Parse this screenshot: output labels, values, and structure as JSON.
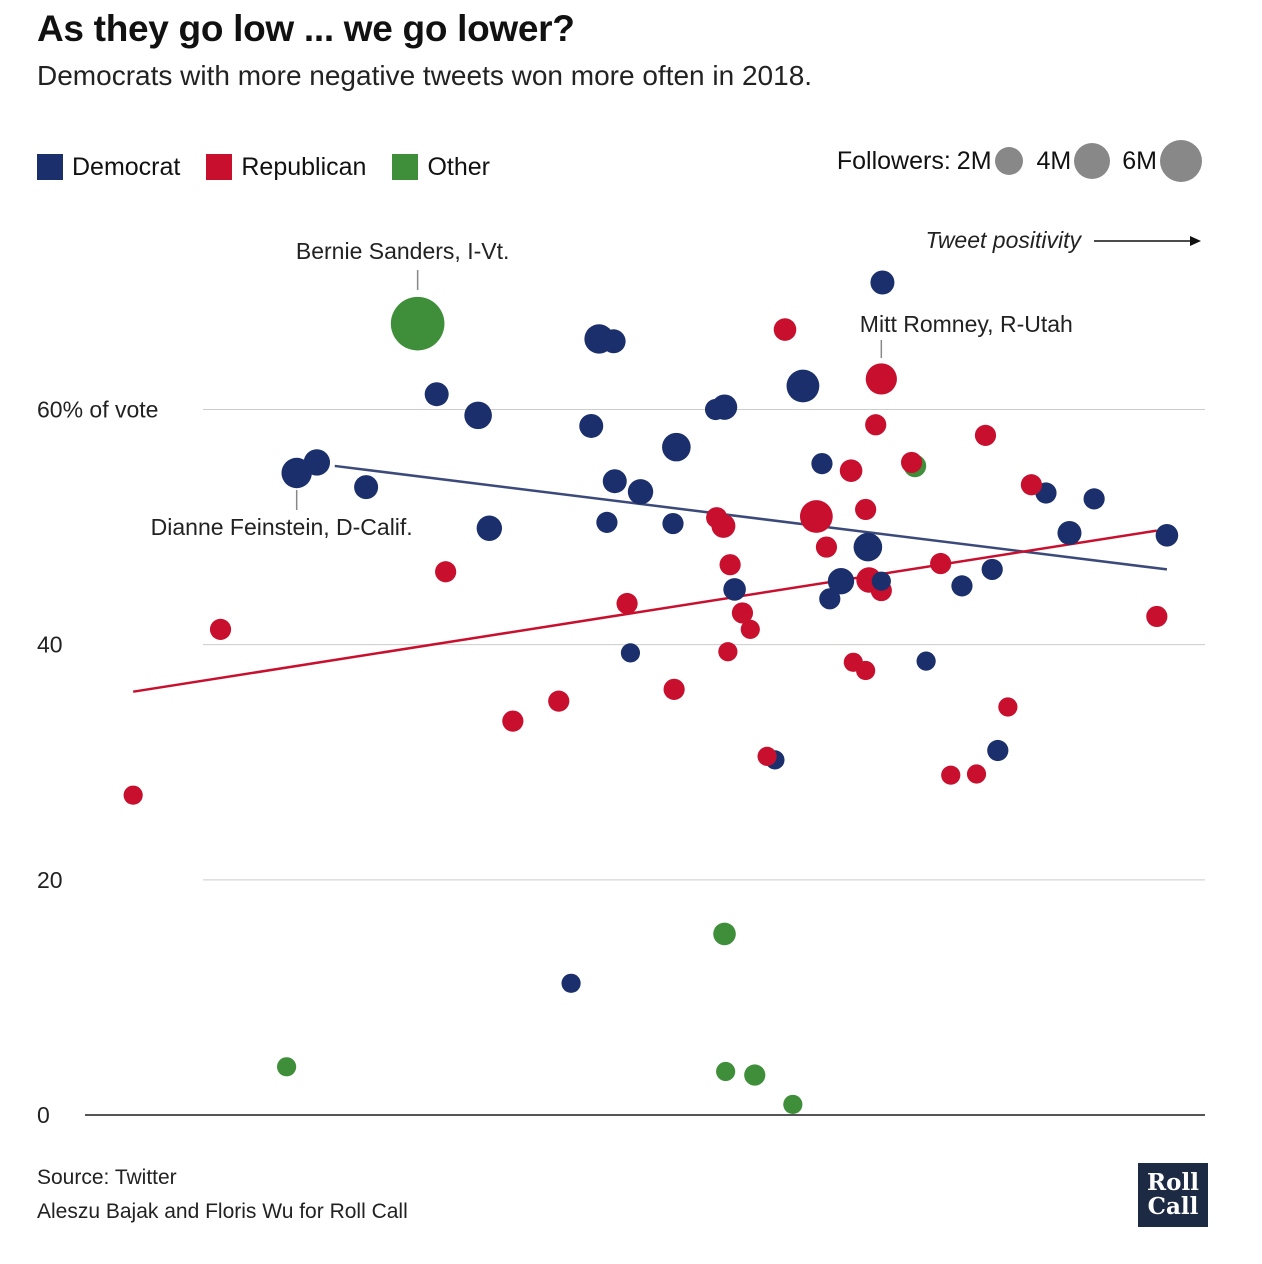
{
  "title": "As they go low ... we go lower?",
  "subtitle": "Democrats with more negative tweets won more often in 2018.",
  "legend": [
    {
      "label": "Democrat",
      "color": "#1a2f6b"
    },
    {
      "label": "Republican",
      "color": "#c8102e"
    },
    {
      "label": "Other",
      "color": "#3f8f3a"
    }
  ],
  "size_legend": {
    "prefix": "Followers:",
    "items": [
      {
        "label": "2M",
        "value": 2
      },
      {
        "label": "4M",
        "value": 4
      },
      {
        "label": "6M",
        "value": 6
      }
    ]
  },
  "footer": {
    "source": "Source: Twitter",
    "credit": "Aleszu Bajak and Floris Wu for Roll Call"
  },
  "logo": {
    "line1": "Roll",
    "line2": "Call"
  },
  "chart_data": {
    "type": "scatter",
    "x_axis_label": "Tweet positivity",
    "ylim": [
      0,
      70
    ],
    "y_ticks": [
      {
        "value": 0,
        "label": "0"
      },
      {
        "value": 20,
        "label": "20"
      },
      {
        "value": 40,
        "label": "40"
      },
      {
        "value": 60,
        "label": "60% of vote"
      }
    ],
    "grid": true,
    "legend_placement": "top",
    "colors": {
      "Democrat": "#1a2f6b",
      "Republican": "#c8102e",
      "Other": "#3f8f3a",
      "size_key": "#888888",
      "grid": "#cccccc"
    },
    "annotations": [
      {
        "text": "Bernie Sanders, I-Vt.",
        "x": 0.297,
        "y": 67.3
      },
      {
        "text": "Mitt Romney, R-Utah",
        "x": 0.711,
        "y": 62.6
      },
      {
        "text": "Dianne Feinstein, D-Calif.",
        "x": 0.189,
        "y": 54.6
      }
    ],
    "trend_lines": [
      {
        "name": "Democrat",
        "color": "#3b4a7a",
        "points": [
          [
            0.223,
            55.2
          ],
          [
            0.966,
            46.4
          ]
        ]
      },
      {
        "name": "Republican",
        "color": "#c8102e",
        "points": [
          [
            0.043,
            36.0
          ],
          [
            0.957,
            49.7
          ]
        ]
      }
    ],
    "points": [
      {
        "party": "Democrat",
        "x": 0.189,
        "y": 54.6,
        "followers": 1.1
      },
      {
        "party": "Democrat",
        "x": 0.207,
        "y": 55.5,
        "followers": 0.7
      },
      {
        "party": "Democrat",
        "x": 0.251,
        "y": 53.4,
        "followers": 0.5
      },
      {
        "party": "Democrat",
        "x": 0.314,
        "y": 61.3,
        "followers": 0.5
      },
      {
        "party": "Democrat",
        "x": 0.351,
        "y": 59.5,
        "followers": 0.8
      },
      {
        "party": "Democrat",
        "x": 0.361,
        "y": 49.9,
        "followers": 0.6
      },
      {
        "party": "Democrat",
        "x": 0.452,
        "y": 58.6,
        "followers": 0.5
      },
      {
        "party": "Democrat",
        "x": 0.459,
        "y": 66.0,
        "followers": 1.0
      },
      {
        "party": "Democrat",
        "x": 0.472,
        "y": 65.8,
        "followers": 0.5
      },
      {
        "party": "Democrat",
        "x": 0.466,
        "y": 50.4,
        "followers": 0.3
      },
      {
        "party": "Democrat",
        "x": 0.473,
        "y": 53.9,
        "followers": 0.5
      },
      {
        "party": "Democrat",
        "x": 0.496,
        "y": 53.0,
        "followers": 0.6
      },
      {
        "party": "Democrat",
        "x": 0.487,
        "y": 39.3,
        "followers": 0.2
      },
      {
        "party": "Democrat",
        "x": 0.434,
        "y": 11.2,
        "followers": 0.2
      },
      {
        "party": "Democrat",
        "x": 0.528,
        "y": 56.8,
        "followers": 0.9
      },
      {
        "party": "Democrat",
        "x": 0.525,
        "y": 50.3,
        "followers": 0.3
      },
      {
        "party": "Democrat",
        "x": 0.563,
        "y": 60.0,
        "followers": 0.3
      },
      {
        "party": "Democrat",
        "x": 0.571,
        "y": 60.2,
        "followers": 0.6
      },
      {
        "party": "Democrat",
        "x": 0.58,
        "y": 44.7,
        "followers": 0.4
      },
      {
        "party": "Democrat",
        "x": 0.616,
        "y": 30.2,
        "followers": 0.2
      },
      {
        "party": "Democrat",
        "x": 0.641,
        "y": 62.0,
        "followers": 1.4
      },
      {
        "party": "Democrat",
        "x": 0.658,
        "y": 55.4,
        "followers": 0.3
      },
      {
        "party": "Democrat",
        "x": 0.665,
        "y": 43.9,
        "followers": 0.3
      },
      {
        "party": "Democrat",
        "x": 0.675,
        "y": 45.4,
        "followers": 0.7
      },
      {
        "party": "Democrat",
        "x": 0.712,
        "y": 70.8,
        "followers": 0.5
      },
      {
        "party": "Democrat",
        "x": 0.699,
        "y": 48.3,
        "followers": 0.9
      },
      {
        "party": "Democrat",
        "x": 0.711,
        "y": 45.4,
        "followers": 0.2
      },
      {
        "party": "Democrat",
        "x": 0.751,
        "y": 38.6,
        "followers": 0.2
      },
      {
        "party": "Democrat",
        "x": 0.783,
        "y": 45.0,
        "followers": 0.3
      },
      {
        "party": "Democrat",
        "x": 0.81,
        "y": 46.4,
        "followers": 0.3
      },
      {
        "party": "Democrat",
        "x": 0.815,
        "y": 31.0,
        "followers": 0.3
      },
      {
        "party": "Democrat",
        "x": 0.858,
        "y": 52.9,
        "followers": 0.3
      },
      {
        "party": "Democrat",
        "x": 0.879,
        "y": 49.5,
        "followers": 0.5
      },
      {
        "party": "Democrat",
        "x": 0.901,
        "y": 52.4,
        "followers": 0.3
      },
      {
        "party": "Democrat",
        "x": 0.966,
        "y": 49.3,
        "followers": 0.4
      },
      {
        "party": "Republican",
        "x": 0.043,
        "y": 27.2,
        "followers": 0.2
      },
      {
        "party": "Republican",
        "x": 0.121,
        "y": 41.3,
        "followers": 0.3
      },
      {
        "party": "Republican",
        "x": 0.322,
        "y": 46.2,
        "followers": 0.3
      },
      {
        "party": "Republican",
        "x": 0.382,
        "y": 33.5,
        "followers": 0.3
      },
      {
        "party": "Republican",
        "x": 0.423,
        "y": 35.2,
        "followers": 0.3
      },
      {
        "party": "Republican",
        "x": 0.484,
        "y": 43.5,
        "followers": 0.3
      },
      {
        "party": "Republican",
        "x": 0.526,
        "y": 36.2,
        "followers": 0.3
      },
      {
        "party": "Republican",
        "x": 0.564,
        "y": 50.8,
        "followers": 0.3
      },
      {
        "party": "Republican",
        "x": 0.57,
        "y": 50.1,
        "followers": 0.5
      },
      {
        "party": "Republican",
        "x": 0.576,
        "y": 46.8,
        "followers": 0.3
      },
      {
        "party": "Republican",
        "x": 0.587,
        "y": 42.7,
        "followers": 0.3
      },
      {
        "party": "Republican",
        "x": 0.594,
        "y": 41.3,
        "followers": 0.2
      },
      {
        "party": "Republican",
        "x": 0.574,
        "y": 39.4,
        "followers": 0.2
      },
      {
        "party": "Republican",
        "x": 0.609,
        "y": 30.5,
        "followers": 0.2
      },
      {
        "party": "Republican",
        "x": 0.625,
        "y": 66.8,
        "followers": 0.4
      },
      {
        "party": "Republican",
        "x": 0.653,
        "y": 50.9,
        "followers": 1.4
      },
      {
        "party": "Republican",
        "x": 0.662,
        "y": 48.3,
        "followers": 0.3
      },
      {
        "party": "Republican",
        "x": 0.684,
        "y": 54.8,
        "followers": 0.4
      },
      {
        "party": "Republican",
        "x": 0.686,
        "y": 38.5,
        "followers": 0.2
      },
      {
        "party": "Republican",
        "x": 0.697,
        "y": 51.5,
        "followers": 0.3
      },
      {
        "party": "Republican",
        "x": 0.697,
        "y": 37.8,
        "followers": 0.2
      },
      {
        "party": "Republican",
        "x": 0.7,
        "y": 45.5,
        "followers": 0.6
      },
      {
        "party": "Republican",
        "x": 0.706,
        "y": 58.7,
        "followers": 0.3
      },
      {
        "party": "Republican",
        "x": 0.711,
        "y": 62.6,
        "followers": 1.2
      },
      {
        "party": "Republican",
        "x": 0.711,
        "y": 44.6,
        "followers": 0.3
      },
      {
        "party": "Republican",
        "x": 0.738,
        "y": 55.5,
        "followers": 0.3
      },
      {
        "party": "Republican",
        "x": 0.764,
        "y": 46.9,
        "followers": 0.3
      },
      {
        "party": "Republican",
        "x": 0.773,
        "y": 28.9,
        "followers": 0.2
      },
      {
        "party": "Republican",
        "x": 0.804,
        "y": 57.8,
        "followers": 0.3
      },
      {
        "party": "Republican",
        "x": 0.796,
        "y": 29.0,
        "followers": 0.2
      },
      {
        "party": "Republican",
        "x": 0.824,
        "y": 34.7,
        "followers": 0.2
      },
      {
        "party": "Republican",
        "x": 0.845,
        "y": 53.6,
        "followers": 0.3
      },
      {
        "party": "Republican",
        "x": 0.957,
        "y": 42.4,
        "followers": 0.3
      },
      {
        "party": "Other",
        "x": 0.297,
        "y": 67.3,
        "followers": 5.3
      },
      {
        "party": "Other",
        "x": 0.741,
        "y": 55.2,
        "followers": 0.4
      },
      {
        "party": "Other",
        "x": 0.18,
        "y": 4.1,
        "followers": 0.2
      },
      {
        "party": "Other",
        "x": 0.571,
        "y": 15.4,
        "followers": 0.4
      },
      {
        "party": "Other",
        "x": 0.572,
        "y": 3.7,
        "followers": 0.2
      },
      {
        "party": "Other",
        "x": 0.598,
        "y": 3.4,
        "followers": 0.3
      },
      {
        "party": "Other",
        "x": 0.632,
        "y": 0.9,
        "followers": 0.2
      }
    ]
  }
}
